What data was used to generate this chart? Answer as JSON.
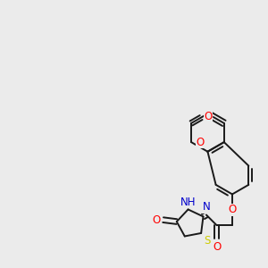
{
  "bg_color": "#ebebeb",
  "bond_color": "#1a1a1a",
  "bond_width": 1.4,
  "dbo": 0.012,
  "atom_colors": {
    "O": "#ff0000",
    "N": "#0000cc",
    "S": "#cccc00",
    "H": "#888888",
    "C": "#1a1a1a"
  },
  "font_size": 8.5,
  "figsize": [
    3.0,
    3.0
  ],
  "dpi": 100
}
